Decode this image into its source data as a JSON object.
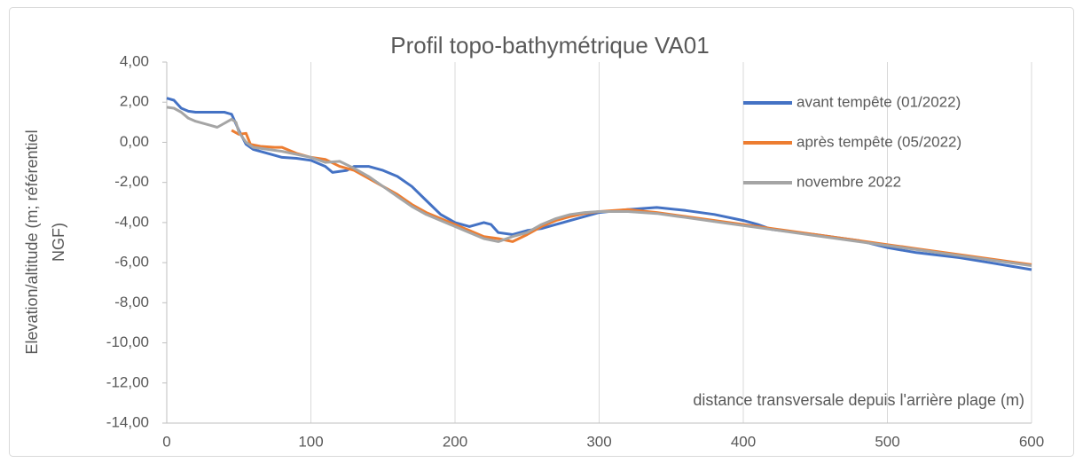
{
  "chart_data": {
    "type": "line",
    "title": "Profil topo-bathymétrique VA01",
    "xlabel": "distance transversale depuis l'arrière plage (m)",
    "ylabel": [
      "Elevation/altitude (m; référentiel",
      "NGF)"
    ],
    "xlim": [
      0,
      600
    ],
    "xticks": [
      0,
      100,
      200,
      300,
      400,
      500,
      600
    ],
    "ylim": [
      -14,
      4
    ],
    "yticks": [
      {
        "value": -14,
        "label": "-14,00"
      },
      {
        "value": -12,
        "label": "-12,00"
      },
      {
        "value": -10,
        "label": "-10,00"
      },
      {
        "value": -8,
        "label": "-8,00"
      },
      {
        "value": -6,
        "label": "-6,00"
      },
      {
        "value": -4,
        "label": "-4,00"
      },
      {
        "value": -2,
        "label": "-2,00"
      },
      {
        "value": 0,
        "label": "0,00"
      },
      {
        "value": 2,
        "label": "2,00"
      },
      {
        "value": 4,
        "label": "4,00"
      }
    ],
    "grid": "x",
    "legend": "upper right",
    "series": [
      {
        "name": "avant tempête (01/2022)",
        "color": "#4472c4",
        "x": [
          0,
          5,
          10,
          15,
          20,
          30,
          40,
          45,
          50,
          55,
          60,
          70,
          80,
          90,
          100,
          110,
          115,
          125,
          130,
          140,
          150,
          160,
          170,
          180,
          190,
          200,
          210,
          220,
          225,
          230,
          240,
          250,
          260,
          270,
          280,
          290,
          300,
          320,
          340,
          360,
          380,
          400,
          410,
          420,
          450,
          480,
          500,
          520,
          550,
          575,
          600
        ],
        "values": [
          2.2,
          2.1,
          1.7,
          1.55,
          1.5,
          1.5,
          1.5,
          1.4,
          0.6,
          -0.1,
          -0.35,
          -0.55,
          -0.75,
          -0.8,
          -0.9,
          -1.2,
          -1.5,
          -1.4,
          -1.2,
          -1.2,
          -1.4,
          -1.7,
          -2.2,
          -2.9,
          -3.6,
          -4.0,
          -4.2,
          -4.0,
          -4.1,
          -4.5,
          -4.6,
          -4.4,
          -4.3,
          -4.1,
          -3.9,
          -3.7,
          -3.5,
          -3.35,
          -3.25,
          -3.4,
          -3.6,
          -3.9,
          -4.1,
          -4.35,
          -4.6,
          -4.9,
          -5.25,
          -5.5,
          -5.75,
          -6.05,
          -6.35
        ]
      },
      {
        "name": "après tempête (05/2022)",
        "color": "#ed7d31",
        "x": [
          45,
          50,
          55,
          58,
          65,
          75,
          80,
          90,
          100,
          110,
          120,
          130,
          140,
          150,
          160,
          170,
          180,
          190,
          200,
          210,
          220,
          230,
          240,
          250,
          260,
          270,
          280,
          290,
          300,
          320,
          340,
          360,
          380,
          400,
          420,
          450,
          480,
          500,
          520,
          550,
          575,
          600
        ],
        "values": [
          0.6,
          0.4,
          0.45,
          -0.1,
          -0.2,
          -0.25,
          -0.25,
          -0.55,
          -0.75,
          -0.85,
          -1.2,
          -1.4,
          -1.8,
          -2.2,
          -2.6,
          -3.1,
          -3.5,
          -3.8,
          -4.1,
          -4.4,
          -4.7,
          -4.8,
          -4.95,
          -4.6,
          -4.2,
          -3.9,
          -3.7,
          -3.55,
          -3.45,
          -3.35,
          -3.5,
          -3.7,
          -3.9,
          -4.1,
          -4.3,
          -4.6,
          -4.9,
          -5.1,
          -5.3,
          -5.6,
          -5.85,
          -6.1
        ]
      },
      {
        "name": "novembre 2022",
        "color": "#a5a5a5",
        "x": [
          0,
          5,
          10,
          15,
          20,
          30,
          35,
          40,
          45,
          48,
          50,
          55,
          60,
          70,
          80,
          90,
          100,
          110,
          120,
          130,
          140,
          150,
          160,
          170,
          180,
          190,
          200,
          210,
          220,
          230,
          240,
          250,
          260,
          270,
          280,
          290,
          300,
          320,
          340,
          360,
          380,
          400,
          420,
          450,
          480,
          500,
          520,
          550,
          575,
          600
        ],
        "values": [
          1.75,
          1.7,
          1.5,
          1.2,
          1.05,
          0.85,
          0.75,
          0.95,
          1.15,
          1.0,
          0.5,
          0.0,
          -0.25,
          -0.35,
          -0.45,
          -0.6,
          -0.75,
          -1.0,
          -0.95,
          -1.3,
          -1.7,
          -2.2,
          -2.7,
          -3.2,
          -3.6,
          -3.9,
          -4.2,
          -4.5,
          -4.8,
          -4.95,
          -4.7,
          -4.5,
          -4.1,
          -3.8,
          -3.6,
          -3.5,
          -3.45,
          -3.45,
          -3.55,
          -3.75,
          -3.95,
          -4.15,
          -4.35,
          -4.65,
          -4.95,
          -5.15,
          -5.35,
          -5.65,
          -5.9,
          -6.15
        ]
      }
    ]
  }
}
